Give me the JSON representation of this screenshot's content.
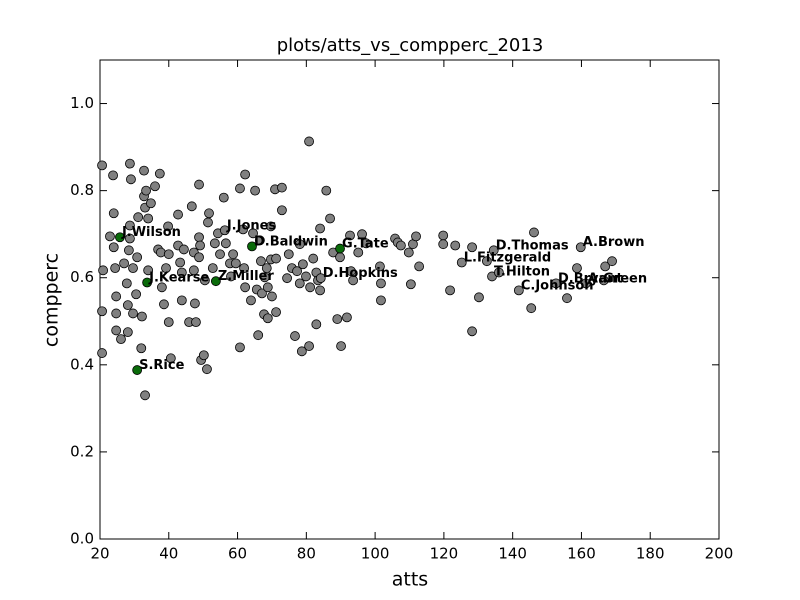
{
  "chart_data": {
    "type": "scatter",
    "title": "plots/atts_vs_compperc_2013",
    "xlabel": "atts",
    "ylabel": "compperc",
    "xlim": [
      20,
      200
    ],
    "ylim": [
      0,
      1.1
    ],
    "xticks": [
      20,
      40,
      60,
      80,
      100,
      120,
      140,
      160,
      180,
      200
    ],
    "yticks": [
      {
        "value": 0,
        "label": "0.0"
      },
      0.2,
      0.4,
      0.6,
      0.8,
      {
        "value": 1,
        "label": "1.0"
      }
    ],
    "grid": false,
    "series": [
      {
        "color": "#808080",
        "x": [
          20.6,
          20.9,
          20.6,
          20.6,
          23.8,
          22.9,
          24,
          24.4,
          24,
          24.7,
          24.7,
          24.7,
          26.1,
          27,
          27.8,
          28.1,
          28.1,
          28.4,
          28.7,
          29,
          28.7,
          28.7,
          29.6,
          29.6,
          30.5,
          30.8,
          31.1,
          32,
          32.2,
          32.8,
          32.8,
          33.1,
          33.4,
          34,
          34,
          33.1,
          34.8,
          36,
          37.4,
          36.9,
          37.7,
          38,
          38.6,
          39.2,
          39.8,
          40,
          40,
          40.6,
          42.7,
          42.7,
          43.3,
          43.8,
          43.8,
          44.4,
          45.9,
          46.7,
          47.3,
          47.3,
          47.6,
          47.9,
          48.8,
          48.8,
          48.8,
          49.1,
          49.4,
          50.2,
          50.5,
          51.1,
          51.4,
          51.7,
          52.8,
          53.4,
          54.3,
          54.9,
          56,
          56.6,
          56.3,
          57.8,
          58.1,
          58.7,
          59.5,
          60.7,
          60.7,
          61.6,
          62.2,
          62.2,
          61.9,
          63.9,
          64.5,
          65.1,
          65.6,
          66,
          66.5,
          66.8,
          67.1,
          67.7,
          67.9,
          68.5,
          68.8,
          68.8,
          69.7,
          69.7,
          70,
          70.9,
          71.2,
          71.2,
          72.9,
          72.9,
          74.4,
          74.9,
          75.8,
          76.7,
          77.3,
          78.1,
          78.1,
          78.7,
          79,
          79.9,
          80.8,
          80.8,
          81.1,
          82,
          82.9,
          82.9,
          83.4,
          84,
          84,
          84.2,
          85.8,
          86.9,
          87.8,
          89,
          89.8,
          90.1,
          91.8,
          92.7,
          93,
          93.6,
          95.1,
          96.2,
          97.4,
          101.4,
          101.7,
          101.7,
          105.8,
          106.6,
          107.5,
          109.8,
          110.4,
          111,
          111.9,
          112.8,
          119.8,
          119.8,
          121.8,
          123.3,
          125.2,
          128.2,
          128.2,
          130.2,
          132.5,
          134,
          134.5,
          136,
          141.8,
          145.4,
          146.2,
          152.6,
          155.8,
          158.7,
          159.8,
          161.3,
          166.5,
          166.9,
          168.9
        ],
        "values": [
          0.858,
          0.617,
          0.523,
          0.427,
          0.835,
          0.695,
          0.748,
          0.622,
          0.67,
          0.557,
          0.518,
          0.479,
          0.459,
          0.633,
          0.587,
          0.537,
          0.475,
          0.663,
          0.862,
          0.826,
          0.72,
          0.69,
          0.622,
          0.518,
          0.562,
          0.647,
          0.739,
          0.438,
          0.511,
          0.846,
          0.787,
          0.761,
          0.8,
          0.736,
          0.617,
          0.33,
          0.771,
          0.81,
          0.839,
          0.665,
          0.658,
          0.578,
          0.539,
          0.622,
          0.718,
          0.654,
          0.498,
          0.415,
          0.674,
          0.745,
          0.635,
          0.612,
          0.548,
          0.665,
          0.498,
          0.764,
          0.658,
          0.617,
          0.541,
          0.498,
          0.814,
          0.693,
          0.647,
          0.674,
          0.411,
          0.422,
          0.594,
          0.39,
          0.727,
          0.748,
          0.622,
          0.679,
          0.702,
          0.654,
          0.784,
          0.679,
          0.709,
          0.633,
          0.603,
          0.654,
          0.633,
          0.44,
          0.805,
          0.711,
          0.837,
          0.578,
          0.622,
          0.548,
          0.702,
          0.8,
          0.573,
          0.468,
          0.686,
          0.638,
          0.564,
          0.516,
          0.601,
          0.622,
          0.578,
          0.507,
          0.718,
          0.642,
          0.557,
          0.803,
          0.644,
          0.521,
          0.807,
          0.755,
          0.599,
          0.654,
          0.622,
          0.466,
          0.615,
          0.587,
          0.677,
          0.431,
          0.631,
          0.603,
          0.913,
          0.443,
          0.578,
          0.644,
          0.493,
          0.612,
          0.594,
          0.571,
          0.713,
          0.599,
          0.8,
          0.736,
          0.658,
          0.505,
          0.647,
          0.443,
          0.509,
          0.697,
          0.615,
          0.594,
          0.658,
          0.7,
          0.679,
          0.626,
          0.587,
          0.548,
          0.69,
          0.681,
          0.674,
          0.658,
          0.585,
          0.677,
          0.695,
          0.626,
          0.697,
          0.677,
          0.571,
          0.674,
          0.635,
          0.67,
          0.477,
          0.555,
          0.638,
          0.603,
          0.663,
          0.612,
          0.571,
          0.53,
          0.704,
          0.587,
          0.553,
          0.622,
          0.67,
          0.587,
          0.594,
          0.626,
          0.638
        ]
      },
      {
        "color": "#0a6b0a",
        "x": [
          25.8,
          30.8,
          33.7,
          53.7,
          64.2,
          89.8
        ],
        "values": [
          0.693,
          0.388,
          0.589,
          0.592,
          0.672,
          0.667
        ]
      }
    ],
    "annotations": [
      {
        "text": "J.Wilson",
        "x": 25.8,
        "y": 0.693
      },
      {
        "text": "S.Rice",
        "x": 30.8,
        "y": 0.388
      },
      {
        "text": "J.Kearse",
        "x": 33.7,
        "y": 0.589
      },
      {
        "text": "Z.Miller",
        "x": 53.7,
        "y": 0.592
      },
      {
        "text": "J.Jones",
        "x": 56.3,
        "y": 0.709
      },
      {
        "text": "D.Baldwin",
        "x": 64.2,
        "y": 0.672
      },
      {
        "text": "D.Hopkins",
        "x": 84.2,
        "y": 0.599
      },
      {
        "text": "G.Tate",
        "x": 89.8,
        "y": 0.667
      },
      {
        "text": "L.Fitzgerald",
        "x": 125.2,
        "y": 0.635
      },
      {
        "text": "D.Thomas",
        "x": 134.5,
        "y": 0.663
      },
      {
        "text": "T.Hilton",
        "x": 134,
        "y": 0.603
      },
      {
        "text": "C.Johnson",
        "x": 141.8,
        "y": 0.571
      },
      {
        "text": "D.Bryant",
        "x": 152.6,
        "y": 0.587
      },
      {
        "text": "A.Green",
        "x": 161.3,
        "y": 0.587
      },
      {
        "text": "A.Brown",
        "x": 159.8,
        "y": 0.67
      }
    ]
  }
}
